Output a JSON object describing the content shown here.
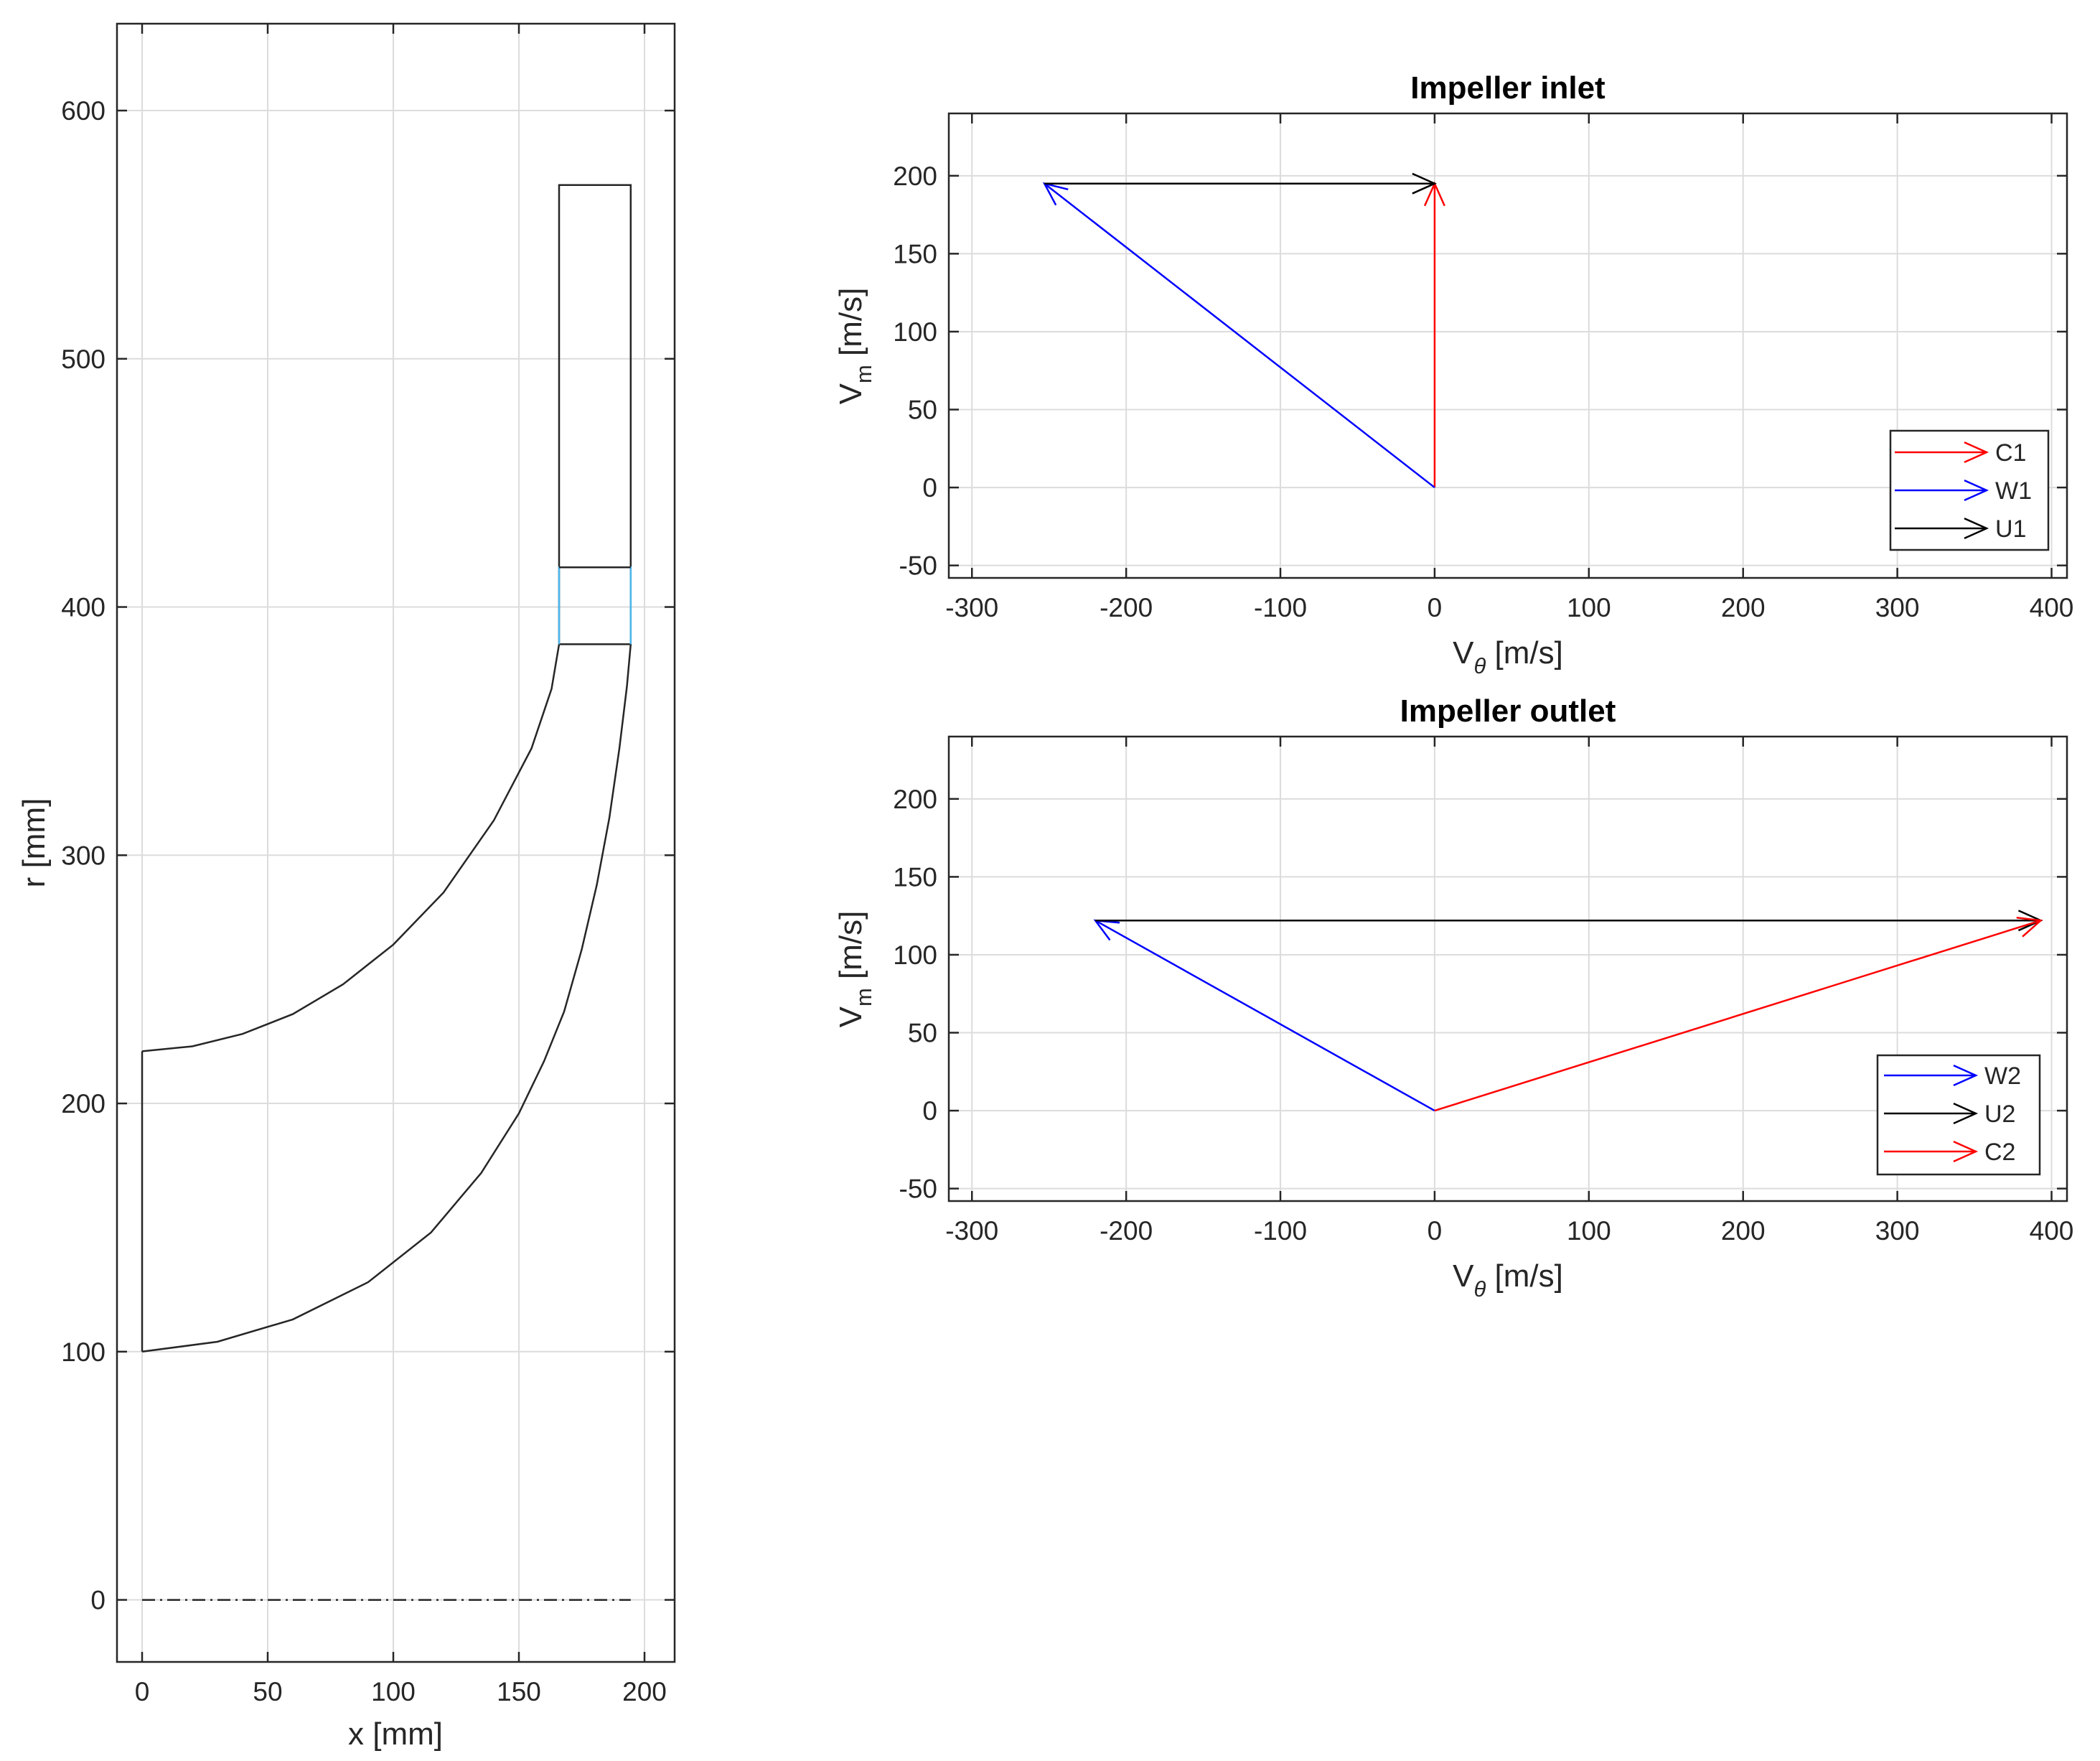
{
  "chart_data": [
    {
      "type": "line",
      "subtype": "meridional-channel",
      "title": "",
      "xlabel": "x [mm]",
      "ylabel": "r [mm]",
      "xlim": [
        -10,
        212
      ],
      "ylim": [
        -25,
        635
      ],
      "xticks": [
        0,
        50,
        100,
        150,
        200
      ],
      "yticks": [
        0,
        100,
        200,
        300,
        400,
        500,
        600
      ],
      "grid": true,
      "series": [
        {
          "role": "hub",
          "color": "#262626",
          "x": [
            0,
            30,
            60,
            90,
            115,
            135,
            150,
            160,
            168,
            175,
            181,
            186,
            190,
            193,
            194.5
          ],
          "y": [
            100,
            104,
            113,
            128,
            148,
            172,
            196,
            217,
            237,
            262,
            288,
            315,
            343,
            368,
            385
          ]
        },
        {
          "role": "shroud",
          "color": "#262626",
          "x": [
            0,
            20,
            40,
            60,
            80,
            100,
            120,
            140,
            155,
            163,
            166
          ],
          "y": [
            221,
            223,
            228,
            236,
            248,
            264,
            285,
            314,
            343,
            367,
            385
          ]
        },
        {
          "role": "inlet",
          "color": "#262626",
          "x": [
            0,
            0
          ],
          "y": [
            100,
            221
          ]
        },
        {
          "role": "vaneless-diffuser-outline",
          "color": "#262626",
          "x": [
            166,
            166,
            194.5,
            194.5,
            166
          ],
          "y": [
            385,
            570,
            570,
            385,
            385
          ]
        },
        {
          "role": "blade-row-outlet",
          "color": "#4db8ee",
          "x": [
            166,
            166,
            194.5,
            194.5
          ],
          "y": [
            385,
            416,
            416,
            385
          ]
        },
        {
          "role": "divider",
          "color": "#262626",
          "x": [
            166,
            194.5
          ],
          "y": [
            416,
            416
          ]
        },
        {
          "role": "axis-of-rotation",
          "color": "#262626",
          "dash": true,
          "x": [
            0,
            194.5
          ],
          "y": [
            0,
            0
          ]
        }
      ]
    },
    {
      "type": "vector",
      "title": "Impeller inlet",
      "xlabel": "V",
      "xlabel_sub": "θ",
      "xlabel_unit": " [m/s]",
      "ylabel": "V",
      "ylabel_sub": "m",
      "ylabel_unit": " [m/s]",
      "xlim": [
        -315,
        410
      ],
      "ylim": [
        -58,
        240
      ],
      "xticks": [
        -300,
        -200,
        -100,
        0,
        100,
        200,
        300,
        400
      ],
      "yticks": [
        -50,
        0,
        50,
        100,
        150,
        200
      ],
      "grid": true,
      "legend_position": "bottom-right",
      "vectors": [
        {
          "name": "C1",
          "color": "#ff0000",
          "x0": 0,
          "y0": 0,
          "x1": 0,
          "y1": 195
        },
        {
          "name": "W1",
          "color": "#0000ff",
          "x0": 0,
          "y0": 0,
          "x1": -253,
          "y1": 195
        },
        {
          "name": "U1",
          "color": "#000000",
          "x0": -253,
          "y0": 195,
          "x1": 0,
          "y1": 195
        }
      ]
    },
    {
      "type": "vector",
      "title": "Impeller outlet",
      "xlabel": "V",
      "xlabel_sub": "θ",
      "xlabel_unit": " [m/s]",
      "ylabel": "V",
      "ylabel_sub": "m",
      "ylabel_unit": " [m/s]",
      "xlim": [
        -315,
        410
      ],
      "ylim": [
        -58,
        240
      ],
      "xticks": [
        -300,
        -200,
        -100,
        0,
        100,
        200,
        300,
        400
      ],
      "yticks": [
        -50,
        0,
        50,
        100,
        150,
        200
      ],
      "grid": true,
      "legend_position": "bottom-right",
      "vectors": [
        {
          "name": "W2",
          "color": "#0000ff",
          "x0": 0,
          "y0": 0,
          "x1": -220,
          "y1": 122
        },
        {
          "name": "U2",
          "color": "#000000",
          "x0": -220,
          "y0": 122,
          "x1": 393,
          "y1": 122
        },
        {
          "name": "C2",
          "color": "#ff0000",
          "x0": 0,
          "y0": 0,
          "x1": 393,
          "y1": 122
        }
      ]
    }
  ]
}
